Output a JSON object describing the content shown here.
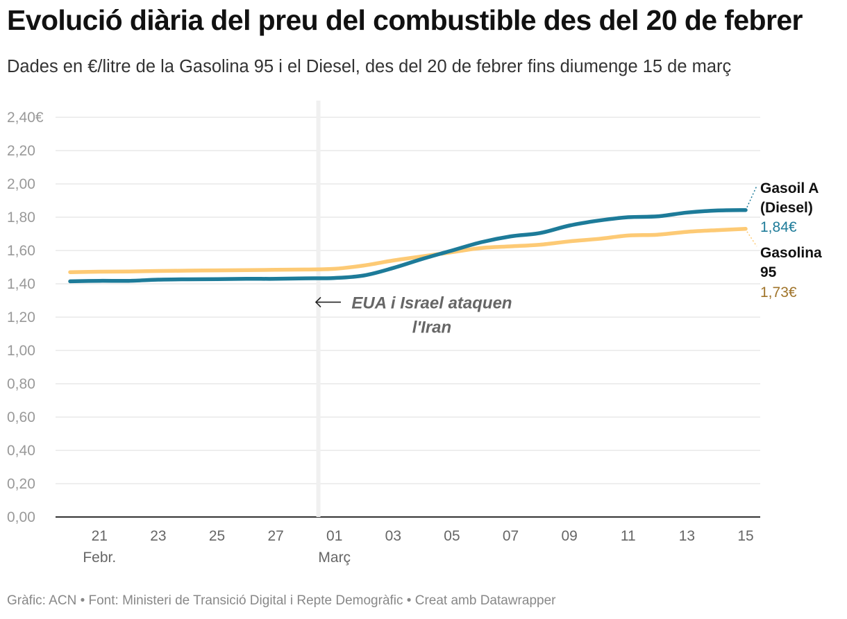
{
  "header": {
    "title": "Evolució diària del preu del combustible des del 20 de febrer",
    "subtitle": "Dades en €/litre de la Gasolina 95 i el Diesel, des del 20 de febrer fins diumenge 15 de març"
  },
  "footer": {
    "credit": "Gràfic: ACN • Font: Ministeri de Transició Digital i Repte Demogràfic • Creat amb Datawrapper"
  },
  "colors": {
    "diesel": "#1d7b99",
    "gasolina": "#fdca75",
    "gasolina_value": "#a0742a",
    "grid": "#e3e3e3",
    "axis": "#333333",
    "event_band": "#f0f0f0",
    "annotation": "#666666"
  },
  "chart_data": {
    "type": "line",
    "title": "Evolució diària del preu del combustible des del 20 de febrer",
    "xlabel": "",
    "ylabel": "€/litre",
    "ylim": [
      0,
      2.4
    ],
    "yticks": [
      "0,00",
      "0,20",
      "0,40",
      "0,60",
      "0,80",
      "1,00",
      "1,20",
      "1,40",
      "1,60",
      "1,80",
      "2,00",
      "2,20",
      "2,40€"
    ],
    "x": [
      "20 febr.",
      "21",
      "22",
      "23",
      "24",
      "25",
      "26",
      "27",
      "28",
      "01 març",
      "02",
      "03",
      "04",
      "05",
      "06",
      "07",
      "08",
      "09",
      "10",
      "11",
      "12",
      "13",
      "14",
      "15"
    ],
    "xticks": [
      {
        "index": 1,
        "label": "21",
        "sub": "Febr."
      },
      {
        "index": 3,
        "label": "23",
        "sub": ""
      },
      {
        "index": 5,
        "label": "25",
        "sub": ""
      },
      {
        "index": 7,
        "label": "27",
        "sub": ""
      },
      {
        "index": 9,
        "label": "01",
        "sub": "Març"
      },
      {
        "index": 11,
        "label": "03",
        "sub": ""
      },
      {
        "index": 13,
        "label": "05",
        "sub": ""
      },
      {
        "index": 15,
        "label": "07",
        "sub": ""
      },
      {
        "index": 17,
        "label": "09",
        "sub": ""
      },
      {
        "index": 19,
        "label": "11",
        "sub": ""
      },
      {
        "index": 21,
        "label": "13",
        "sub": ""
      },
      {
        "index": 23,
        "label": "15",
        "sub": ""
      }
    ],
    "series": [
      {
        "name": "Gasoil A (Diesel)",
        "label_lines": [
          "Gasoil A",
          "(Diesel)"
        ],
        "value_label": "1,84€",
        "values": [
          1.415,
          1.418,
          1.418,
          1.425,
          1.427,
          1.428,
          1.43,
          1.43,
          1.433,
          1.435,
          1.45,
          1.495,
          1.55,
          1.6,
          1.65,
          1.685,
          1.705,
          1.75,
          1.78,
          1.8,
          1.805,
          1.828,
          1.84,
          1.843
        ]
      },
      {
        "name": "Gasolina 95",
        "label_lines": [
          "Gasolina",
          "95"
        ],
        "value_label": "1,73€",
        "values": [
          1.47,
          1.473,
          1.474,
          1.477,
          1.479,
          1.481,
          1.482,
          1.484,
          1.486,
          1.49,
          1.51,
          1.54,
          1.565,
          1.59,
          1.615,
          1.625,
          1.635,
          1.655,
          1.67,
          1.69,
          1.695,
          1.712,
          1.722,
          1.73
        ]
      }
    ],
    "annotations": [
      {
        "at_index": 8,
        "lines": [
          "EUA i Israel ataquen",
          "l'Iran"
        ]
      }
    ],
    "grid": true,
    "legend": "direct labels at right"
  }
}
